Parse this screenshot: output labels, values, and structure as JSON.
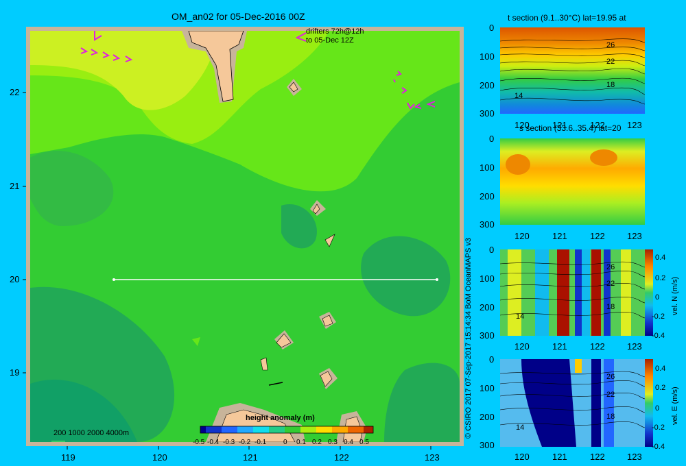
{
  "title": "OM_an02 for 05-Dec-2016 00Z",
  "drifters": {
    "line1": "drifters 72h@12h",
    "line2": "to 05-Dec 12Z"
  },
  "map": {
    "lon_ticks": [
      "119",
      "120",
      "121",
      "122",
      "123"
    ],
    "lat_ticks": [
      "22",
      "21",
      "20",
      "19"
    ],
    "depth_legend": "200  1000  2000  4000m",
    "section_line_lat": 20,
    "colorbar": {
      "label": "height anomaly (m)",
      "ticks": [
        "-0.5",
        "-0.4",
        "-0.3",
        "-0.2",
        "-0.1",
        "0",
        "0.1",
        "0.2",
        "0.3",
        "0.4",
        "0.5"
      ]
    }
  },
  "credit": "© CSIRO 2017   07-Sep-2017 15:14:34 BoM OceanMAPS v3",
  "panels": [
    {
      "title": "t section (9.1..30°C) lat=19.95 at",
      "x_ticks": [
        "120",
        "121",
        "122",
        "123"
      ],
      "y_ticks": [
        "0",
        "100",
        "200",
        "300"
      ],
      "contour_labels": [
        "26",
        "22",
        "18",
        "14"
      ]
    },
    {
      "title": "s section (33.6..35.4) lat=20",
      "x_ticks": [
        "120",
        "121",
        "122",
        "123"
      ],
      "y_ticks": [
        "0",
        "100",
        "200",
        "300"
      ]
    },
    {
      "title": "",
      "x_ticks": [
        "120",
        "121",
        "122",
        "123"
      ],
      "y_ticks": [
        "0",
        "100",
        "200",
        "300"
      ],
      "contour_labels": [
        "26",
        "22",
        "18",
        "14"
      ],
      "colorbar_label": "vel. N (m/s)",
      "colorbar_ticks": [
        "0.4",
        "0.2",
        "0",
        "-0.2",
        "-0.4"
      ]
    },
    {
      "title": "",
      "x_ticks": [
        "120",
        "121",
        "122",
        "123"
      ],
      "y_ticks": [
        "0",
        "100",
        "200",
        "300"
      ],
      "contour_labels": [
        "26",
        "22",
        "18",
        "14"
      ],
      "colorbar_label": "vel. E (m/s)",
      "colorbar_ticks": [
        "0.4",
        "0.2",
        "0",
        "-0.2",
        "-0.4"
      ]
    }
  ],
  "colors": {
    "background": "#00ccff",
    "land": "#f5c89a",
    "shelf": "#c8b49a",
    "drifter": "#e020e0",
    "section_line": "#ffffff"
  }
}
